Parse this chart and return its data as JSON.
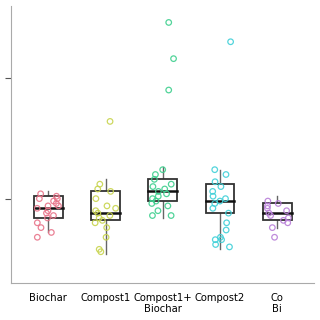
{
  "colors": [
    "#e8748a",
    "#c8d44e",
    "#3ecf8e",
    "#40d0d8",
    "#b87fd8"
  ],
  "box_data": [
    {
      "q1": 92,
      "median": 96,
      "q3": 101,
      "whislo": 86,
      "whishi": 103
    },
    {
      "q1": 91,
      "median": 94,
      "q3": 103,
      "whislo": 77,
      "whishi": 108
    },
    {
      "q1": 99,
      "median": 103,
      "q3": 108,
      "whislo": 92,
      "whishi": 113
    },
    {
      "q1": 94,
      "median": 99,
      "q3": 106,
      "whislo": 79,
      "whishi": 112
    },
    {
      "q1": 91,
      "median": 94,
      "q3": 98,
      "whislo": 88,
      "whishi": 101
    }
  ],
  "scatter_data": [
    [
      88,
      90,
      92,
      93,
      94,
      95,
      96,
      97,
      97,
      98,
      99,
      100,
      100,
      101,
      102,
      86,
      84
    ],
    [
      79,
      84,
      88,
      90,
      91,
      92,
      93,
      94,
      95,
      96,
      97,
      100,
      103,
      104,
      106,
      78,
      132
    ],
    [
      93,
      95,
      97,
      98,
      99,
      100,
      101,
      102,
      103,
      104,
      105,
      106,
      108,
      110,
      112,
      93,
      145,
      158,
      173
    ],
    [
      81,
      84,
      87,
      90,
      94,
      96,
      98,
      99,
      100,
      101,
      103,
      105,
      107,
      110,
      112,
      83,
      165,
      80,
      83
    ],
    [
      88,
      90,
      91,
      92,
      93,
      94,
      95,
      96,
      97,
      98,
      99,
      84
    ]
  ],
  "ylim_data": [
    65,
    180
  ],
  "yticks": [
    100,
    150
  ],
  "positions": [
    1,
    2,
    3,
    4,
    5
  ],
  "box_width": 0.5,
  "xlabels": [
    "Biochar",
    "Compost1",
    "Compost1+\nBiochar",
    "Compost2",
    "Co\nBi"
  ],
  "figsize": [
    3.2,
    3.2
  ],
  "dpi": 100
}
